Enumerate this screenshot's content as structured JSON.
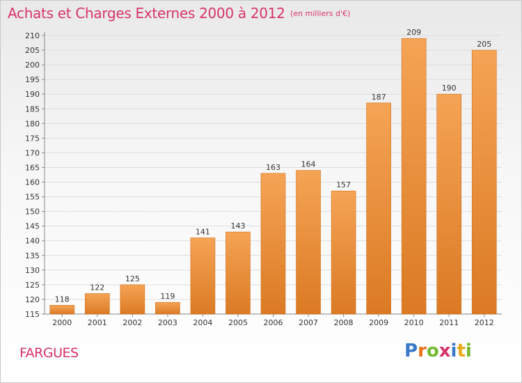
{
  "title": "Achats et Charges Externes 2000 à 2012",
  "subtitle": "(en milliers d'€)",
  "commune": "FARGUES",
  "logo": {
    "text": "Proxiti",
    "letters": [
      {
        "ch": "P",
        "color": "#3a78c9"
      },
      {
        "ch": "r",
        "color": "#e8731a"
      },
      {
        "ch": "o",
        "color": "#74b82f"
      },
      {
        "ch": "x",
        "color": "#d6336c"
      },
      {
        "ch": "i",
        "color": "#3a78c9"
      },
      {
        "ch": "t",
        "color": "#e8a81a"
      },
      {
        "ch": "i",
        "color": "#74b82f"
      }
    ]
  },
  "colors": {
    "bar_light": "#f5a455",
    "bar_dark": "#db7a24",
    "bar_edge": "#d06d1a",
    "accent": "#d6336c",
    "axis": "#888888",
    "grid": "#dddddd"
  },
  "chart_data": {
    "type": "bar",
    "categories": [
      "2000",
      "2001",
      "2002",
      "2003",
      "2004",
      "2005",
      "2006",
      "2007",
      "2008",
      "2009",
      "2010",
      "2011",
      "2012"
    ],
    "values": [
      118,
      122,
      125,
      119,
      141,
      143,
      163,
      164,
      157,
      187,
      209,
      190,
      205
    ],
    "title": "Achats et Charges Externes 2000 à 2012",
    "xlabel": "",
    "ylabel": "",
    "ylim": [
      115,
      210
    ],
    "yticks": [
      115,
      120,
      125,
      130,
      135,
      140,
      145,
      150,
      155,
      160,
      165,
      170,
      175,
      180,
      185,
      190,
      195,
      200,
      205,
      210
    ],
    "grid": true
  }
}
